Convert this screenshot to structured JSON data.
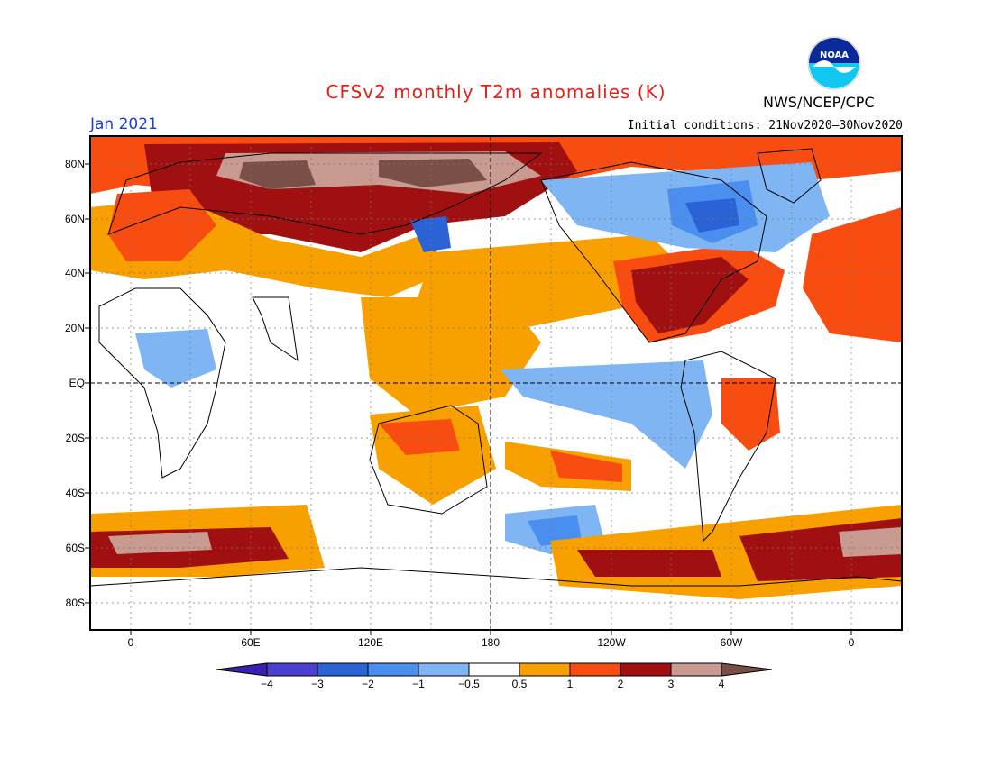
{
  "header": {
    "title": "CFSv2 monthly T2m anomalies (K)",
    "month": "Jan 2021",
    "initial_conditions": "Initial conditions: 21Nov2020–30Nov2020",
    "agency": "NWS/NCEP/CPC",
    "logo_text": "NOAA",
    "logo_icon": "noaa-logo"
  },
  "axes": {
    "lat_labels": [
      "80N",
      "60N",
      "40N",
      "20N",
      "EQ",
      "20S",
      "40S",
      "60S",
      "80S"
    ],
    "lon_labels": [
      "0",
      "60E",
      "120E",
      "180",
      "120W",
      "60W",
      "0"
    ]
  },
  "colorbar": {
    "labels": [
      "−4",
      "−3",
      "−2",
      "−1",
      "−0.5",
      "0.5",
      "1",
      "2",
      "3",
      "4"
    ],
    "colors": [
      "#3a1fb0",
      "#4a3fd0",
      "#2b63d6",
      "#4a8ff0",
      "#7fb5f2",
      "#ffffff",
      "#f7a000",
      "#f84c10",
      "#a01010",
      "#c99a8f",
      "#7a4f47"
    ]
  }
}
